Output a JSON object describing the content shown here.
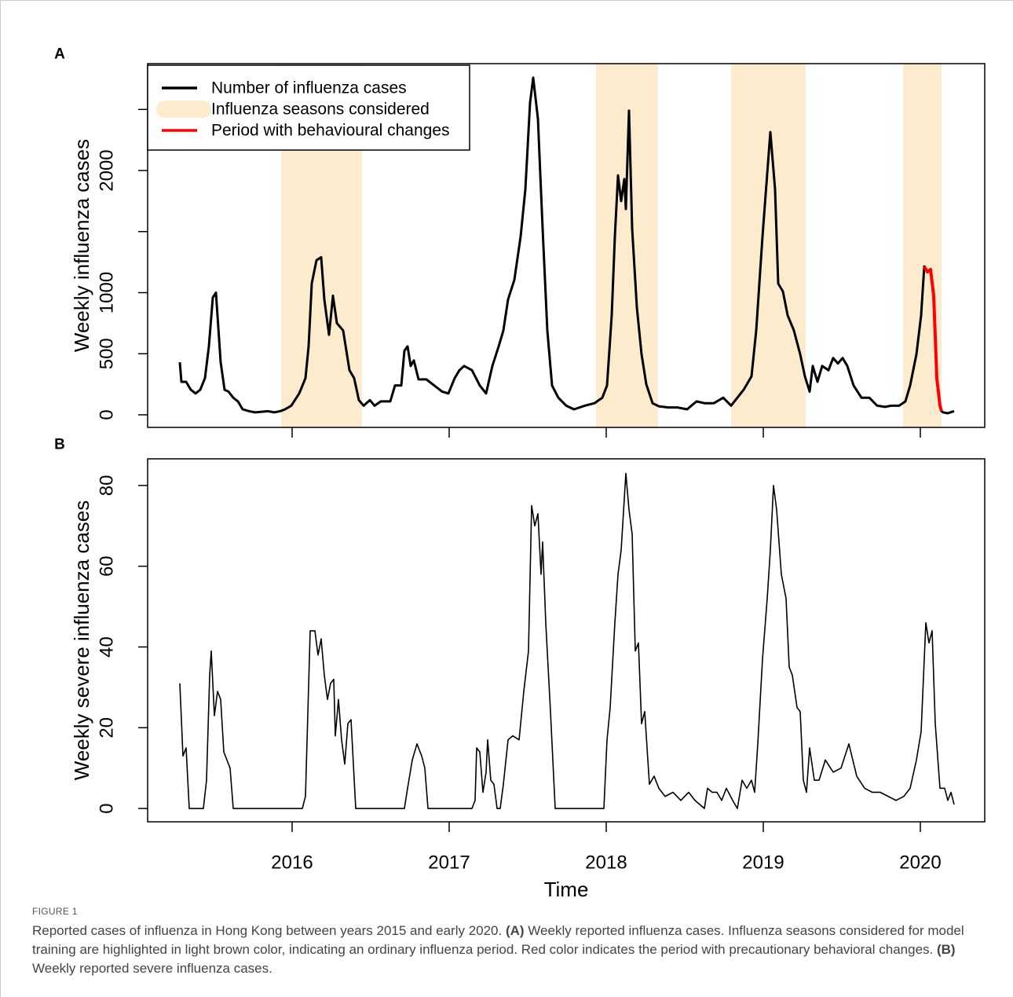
{
  "chart_data": [
    {
      "type": "line",
      "panel_label": "A",
      "ylabel": "Weekly influenza cases",
      "xlim": [
        2015.08,
        2020.41
      ],
      "xticks": [
        2016,
        2017,
        2018,
        2019,
        2020
      ],
      "show_xtick_labels": false,
      "ylim": [
        -103,
        2875
      ],
      "yticks": [
        0,
        500,
        1000,
        2000
      ],
      "minor_yticks": [
        1500,
        2500
      ],
      "legend": "top-left",
      "seasons": {
        "name": "Influenza seasons considered",
        "color": "#fcebcc",
        "ranges": [
          [
            2015.93,
            2016.445
          ],
          [
            2017.935,
            2018.33
          ],
          [
            2018.795,
            2019.27
          ],
          [
            2019.89,
            2020.135
          ]
        ]
      },
      "series": [
        {
          "name": "Number of influenza cases",
          "color": "#000000",
          "x": [
            2015.285,
            2015.295,
            2015.325,
            2015.355,
            2015.385,
            2015.415,
            2015.445,
            2015.47,
            2015.495,
            2015.515,
            2015.545,
            2015.57,
            2015.595,
            2015.625,
            2015.655,
            2015.685,
            2015.725,
            2015.765,
            2015.845,
            2015.885,
            2015.925,
            2015.955,
            2015.995,
            2016.045,
            2016.085,
            2016.105,
            2016.125,
            2016.155,
            2016.185,
            2016.205,
            2016.235,
            2016.26,
            2016.285,
            2016.325,
            2016.365,
            2016.395,
            2016.425,
            2016.455,
            2016.495,
            2016.525,
            2016.565,
            2016.625,
            2016.655,
            2016.695,
            2016.715,
            2016.735,
            2016.755,
            2016.775,
            2016.805,
            2016.855,
            2016.905,
            2016.955,
            2016.995,
            2017.035,
            2017.065,
            2017.095,
            2017.145,
            2017.195,
            2017.235,
            2017.275,
            2017.315,
            2017.345,
            2017.375,
            2017.415,
            2017.455,
            2017.485,
            2017.515,
            2017.535,
            2017.565,
            2017.595,
            2017.625,
            2017.655,
            2017.695,
            2017.745,
            2017.795,
            2017.865,
            2017.925,
            2017.975,
            2018.005,
            2018.035,
            2018.055,
            2018.075,
            2018.095,
            2018.115,
            2018.125,
            2018.145,
            2018.165,
            2018.195,
            2018.225,
            2018.255,
            2018.295,
            2018.335,
            2018.395,
            2018.455,
            2018.515,
            2018.575,
            2018.625,
            2018.685,
            2018.745,
            2018.795,
            2018.835,
            2018.875,
            2018.925,
            2018.955,
            2018.995,
            2019.025,
            2019.045,
            2019.075,
            2019.095,
            2019.125,
            2019.155,
            2019.195,
            2019.235,
            2019.265,
            2019.295,
            2019.315,
            2019.345,
            2019.375,
            2019.415,
            2019.445,
            2019.475,
            2019.505,
            2019.535,
            2019.575,
            2019.625,
            2019.675,
            2019.725,
            2019.775,
            2019.815,
            2019.865,
            2019.905,
            2019.935,
            2019.975,
            2020.005,
            2020.025,
            2020.045,
            2020.065,
            2020.085,
            2020.105,
            2020.125,
            2020.135,
            2020.145,
            2020.175,
            2020.215
          ],
          "values": [
            430,
            270,
            270,
            205,
            175,
            205,
            300,
            560,
            960,
            1000,
            430,
            205,
            190,
            140,
            110,
            45,
            30,
            20,
            30,
            20,
            30,
            45,
            75,
            175,
            300,
            560,
            1075,
            1265,
            1290,
            945,
            655,
            975,
            750,
            690,
            365,
            300,
            120,
            75,
            120,
            75,
            110,
            110,
            240,
            240,
            525,
            560,
            400,
            445,
            290,
            290,
            240,
            190,
            175,
            300,
            365,
            400,
            365,
            240,
            175,
            400,
            560,
            690,
            945,
            1105,
            1460,
            1845,
            2555,
            2760,
            2425,
            1525,
            690,
            240,
            140,
            75,
            45,
            75,
            95,
            140,
            240,
            815,
            1460,
            1960,
            1750,
            1930,
            1685,
            2490,
            1525,
            880,
            495,
            250,
            95,
            70,
            60,
            60,
            45,
            110,
            95,
            95,
            140,
            75,
            140,
            205,
            315,
            690,
            1460,
            1975,
            2315,
            1845,
            1075,
            1010,
            815,
            690,
            495,
            315,
            190,
            400,
            270,
            400,
            365,
            465,
            420,
            465,
            400,
            240,
            140,
            140,
            75,
            65,
            75,
            75,
            110,
            240,
            495,
            815,
            1215,
            1170,
            1190,
            975,
            300,
            75,
            30,
            20,
            13,
            30
          ]
        },
        {
          "name": "Period with behavioural changes",
          "color": "#ff0000",
          "x": [
            2020.025,
            2020.045,
            2020.065,
            2020.085,
            2020.105,
            2020.125,
            2020.135
          ],
          "values": [
            1215,
            1170,
            1190,
            975,
            300,
            75,
            30
          ]
        }
      ]
    },
    {
      "type": "line",
      "panel_label": "B",
      "ylabel": "Weekly severe influenza cases",
      "xlabel": "Time",
      "xlim": [
        2015.08,
        2020.41
      ],
      "xticks": [
        2016,
        2017,
        2018,
        2019,
        2020
      ],
      "ylim": [
        -3.3,
        86.6
      ],
      "yticks": [
        0,
        20,
        40,
        60,
        80
      ],
      "series": [
        {
          "color": "#000000",
          "x": [
            2015.285,
            2015.305,
            2015.325,
            2015.345,
            2015.435,
            2015.455,
            2015.475,
            2015.485,
            2015.505,
            2015.525,
            2015.545,
            2015.565,
            2015.585,
            2015.605,
            2015.625,
            2016.065,
            2016.085,
            2016.115,
            2016.145,
            2016.165,
            2016.185,
            2016.205,
            2016.225,
            2016.245,
            2016.265,
            2016.275,
            2016.295,
            2016.315,
            2016.335,
            2016.355,
            2016.375,
            2016.405,
            2016.715,
            2016.735,
            2016.765,
            2016.795,
            2016.825,
            2016.845,
            2016.865,
            2017.145,
            2017.165,
            2017.175,
            2017.195,
            2017.215,
            2017.235,
            2017.245,
            2017.265,
            2017.285,
            2017.305,
            2017.325,
            2017.345,
            2017.375,
            2017.405,
            2017.445,
            2017.475,
            2017.505,
            2017.525,
            2017.545,
            2017.565,
            2017.585,
            2017.595,
            2017.615,
            2017.645,
            2017.675,
            2017.985,
            2018.005,
            2018.025,
            2018.055,
            2018.075,
            2018.095,
            2018.125,
            2018.145,
            2018.165,
            2018.185,
            2018.205,
            2018.225,
            2018.245,
            2018.275,
            2018.305,
            2018.335,
            2018.375,
            2018.425,
            2018.475,
            2018.525,
            2018.565,
            2018.625,
            2018.645,
            2018.675,
            2018.705,
            2018.735,
            2018.765,
            2018.805,
            2018.835,
            2018.865,
            2018.895,
            2018.925,
            2018.945,
            2018.965,
            2018.995,
            2019.025,
            2019.045,
            2019.065,
            2019.085,
            2019.115,
            2019.145,
            2019.165,
            2019.185,
            2019.215,
            2019.235,
            2019.255,
            2019.275,
            2019.295,
            2019.325,
            2019.355,
            2019.395,
            2019.445,
            2019.495,
            2019.545,
            2019.595,
            2019.645,
            2019.695,
            2019.745,
            2019.795,
            2019.845,
            2019.895,
            2019.935,
            2019.975,
            2020.005,
            2020.035,
            2020.055,
            2020.075,
            2020.095,
            2020.125,
            2020.155,
            2020.175,
            2020.195,
            2020.215
          ],
          "values": [
            31,
            13,
            15,
            0,
            0,
            7,
            33,
            39,
            23,
            29,
            27,
            14,
            12,
            10,
            0,
            0,
            3,
            44,
            44,
            38,
            42,
            33,
            27,
            31,
            32,
            18,
            27,
            17,
            11,
            21,
            22,
            0,
            0,
            5,
            12,
            16,
            13,
            10,
            0,
            0,
            2,
            15,
            14,
            4,
            9,
            17,
            7,
            6,
            0,
            0,
            6,
            17,
            18,
            17,
            29,
            39,
            75,
            70,
            73,
            58,
            66,
            46,
            24,
            0,
            0,
            17,
            25,
            46,
            58,
            64,
            83,
            74,
            68,
            39,
            41,
            21,
            24,
            6,
            8,
            5,
            3,
            4,
            2,
            4,
            2,
            0,
            5,
            4,
            4,
            2,
            5,
            2,
            0,
            7,
            5,
            7,
            4,
            16,
            37,
            52,
            64,
            80,
            74,
            58,
            52,
            35,
            33,
            25,
            24,
            7,
            4,
            15,
            7,
            7,
            12,
            9,
            10,
            16,
            8,
            5,
            4,
            4,
            3,
            2,
            3,
            5,
            12,
            19,
            46,
            41,
            44,
            21,
            5,
            5,
            2,
            4,
            1
          ]
        }
      ]
    }
  ],
  "caption": {
    "label": "FIGURE 1",
    "segments": [
      "Reported cases of influenza in Hong Kong between years 2015 and early 2020. ",
      "(A)",
      " Weekly reported influenza cases. Influenza seasons considered for model training are highlighted in light brown color, indicating an ordinary influenza period. Red color indicates the period with precautionary behavioral changes. ",
      "(B)",
      " Weekly reported severe influenza cases."
    ]
  }
}
